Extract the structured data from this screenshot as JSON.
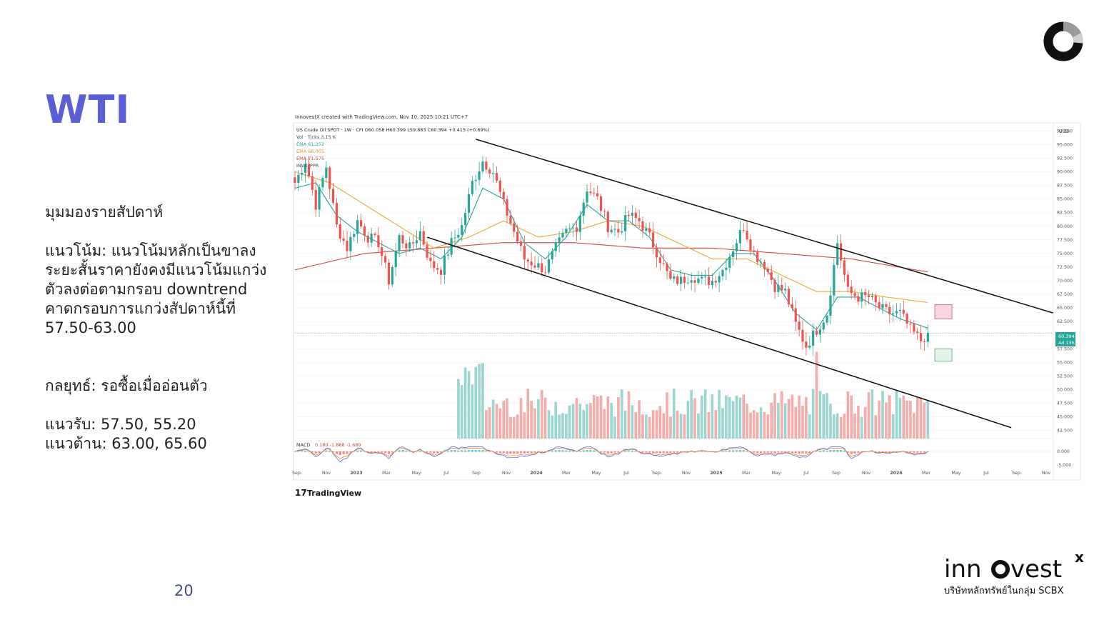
{
  "slide": {
    "title": "WTI",
    "view_heading": "มุมมองรายสัปดาห์",
    "trend_lines": [
      "แนวโน้ม: แนวโน้มหลักเป็นขาลง",
      "ระยะสั้นราคายังคงมีแนวโน้มแกว่ง",
      "ตัวลงต่อตามกรอบ downtrend",
      "คาดกรอบการแกว่งสัปดาห์นี้ที่",
      "57.50-63.00"
    ],
    "strategy": "กลยุทธ์: รอซื้อเมื่ออ่อนตัว",
    "support": "แนวรับ: 57.50, 55.20",
    "resistance": "แนวต้าน: 63.00, 65.60",
    "page_number": "20"
  },
  "brand": {
    "name_part1": "inn",
    "name_part2": "vest",
    "mark": "x",
    "tagline": "บริษัทหลักทรัพย์ในกลุ่ม SCBX"
  },
  "chart_header": {
    "created_by": "InnovestX created with TradingView.com, Nov 10, 2025 10:21 UTC+7",
    "symbol_line": "US Crude Oil SPOT · 1W · CFI  O60.058 H60.399 L59.883 C60.394 +0.415 (+0.69%)",
    "vol_label": "Vol · Ticks  3.15 K",
    "ema1": "EMA  61.252",
    "ema2": "EMA  66.005",
    "ema3": "EMA  71.575",
    "invx": "INVX_PPR",
    "macd_label": "MACD",
    "macd_values": "0.180  -1.868  -1.689",
    "currency": "USD",
    "price_tag": "60.394",
    "countdown": "4d 13h",
    "footer_brand": "TradingView"
  },
  "chart_data": {
    "type": "candlestick",
    "title": "",
    "currency": "USD",
    "y_ticks": [
      97.5,
      95.0,
      92.5,
      90.0,
      87.5,
      85.0,
      82.5,
      80.0,
      77.5,
      75.0,
      72.5,
      70.0,
      67.5,
      65.0,
      62.5,
      57.5,
      55.0,
      52.5,
      50.0,
      47.5,
      45.0,
      42.5
    ],
    "y_tick_labels": [
      "97.500",
      "95.000",
      "92.500",
      "90.000",
      "87.500",
      "85.000",
      "82.500",
      "80.000",
      "77.500",
      "75.000",
      "72.500",
      "70.000",
      "67.500",
      "65.000",
      "62.500",
      "57.500",
      "55.000",
      "52.500",
      "50.000",
      "47.500",
      "45.000",
      "42.500"
    ],
    "ylim": [
      41.0,
      99.0
    ],
    "macd_ticks": [
      "0.000",
      "-5.000"
    ],
    "x_labels": [
      "Sep",
      "Nov",
      "2023",
      "Mar",
      "May",
      "Jul",
      "Sep",
      "Nov",
      "2024",
      "Mar",
      "May",
      "Jul",
      "Sep",
      "Nov",
      "2025",
      "Mar",
      "May",
      "Jul",
      "Sep",
      "Nov",
      "2026",
      "Mar",
      "May",
      "Jul",
      "Sep",
      "Nov"
    ],
    "bold_x_labels": [
      "2023",
      "2024",
      "2025",
      "2026"
    ],
    "last_price": 60.394,
    "price_anchors": [
      [
        0,
        88
      ],
      [
        3,
        92
      ],
      [
        6,
        84
      ],
      [
        9,
        91
      ],
      [
        12,
        80
      ],
      [
        15,
        76
      ],
      [
        18,
        81
      ],
      [
        21,
        78
      ],
      [
        24,
        77
      ],
      [
        27,
        70
      ],
      [
        30,
        78
      ],
      [
        33,
        76
      ],
      [
        36,
        79
      ],
      [
        39,
        73
      ],
      [
        42,
        72
      ],
      [
        45,
        77
      ],
      [
        48,
        80
      ],
      [
        51,
        88
      ],
      [
        54,
        92
      ],
      [
        57,
        90
      ],
      [
        60,
        84
      ],
      [
        63,
        79
      ],
      [
        66,
        74
      ],
      [
        69,
        73
      ],
      [
        72,
        72
      ],
      [
        75,
        76
      ],
      [
        78,
        79
      ],
      [
        81,
        80
      ],
      [
        84,
        87
      ],
      [
        87,
        85
      ],
      [
        90,
        80
      ],
      [
        93,
        79
      ],
      [
        96,
        82
      ],
      [
        99,
        81
      ],
      [
        102,
        78
      ],
      [
        105,
        74
      ],
      [
        108,
        70
      ],
      [
        111,
        70
      ],
      [
        114,
        71
      ],
      [
        117,
        70
      ],
      [
        120,
        70
      ],
      [
        123,
        72
      ],
      [
        126,
        76
      ],
      [
        129,
        80
      ],
      [
        132,
        75
      ],
      [
        135,
        73
      ],
      [
        138,
        69
      ],
      [
        141,
        68
      ],
      [
        144,
        62
      ],
      [
        147,
        58
      ],
      [
        150,
        61
      ],
      [
        153,
        64
      ],
      [
        156,
        77
      ],
      [
        159,
        68
      ],
      [
        162,
        67
      ],
      [
        165,
        67
      ],
      [
        168,
        65
      ],
      [
        171,
        64
      ],
      [
        174,
        64
      ],
      [
        177,
        61
      ],
      [
        180,
        59
      ],
      [
        182,
        60.4
      ]
    ],
    "ema_fast": [
      [
        0,
        87
      ],
      [
        6,
        88
      ],
      [
        12,
        82
      ],
      [
        18,
        79
      ],
      [
        24,
        77
      ],
      [
        30,
        75
      ],
      [
        36,
        76
      ],
      [
        42,
        74
      ],
      [
        48,
        78
      ],
      [
        54,
        87
      ],
      [
        60,
        85
      ],
      [
        66,
        77
      ],
      [
        72,
        74
      ],
      [
        78,
        78
      ],
      [
        84,
        84
      ],
      [
        90,
        81
      ],
      [
        96,
        81
      ],
      [
        102,
        78
      ],
      [
        108,
        72
      ],
      [
        114,
        71
      ],
      [
        120,
        71
      ],
      [
        126,
        75
      ],
      [
        132,
        75
      ],
      [
        138,
        70
      ],
      [
        144,
        64
      ],
      [
        150,
        61
      ],
      [
        156,
        67
      ],
      [
        162,
        67
      ],
      [
        168,
        65
      ],
      [
        174,
        63
      ],
      [
        182,
        61.3
      ]
    ],
    "ema_mid": [
      [
        0,
        90
      ],
      [
        10,
        88
      ],
      [
        20,
        84
      ],
      [
        30,
        80
      ],
      [
        40,
        76
      ],
      [
        50,
        78
      ],
      [
        60,
        81
      ],
      [
        70,
        78
      ],
      [
        80,
        79
      ],
      [
        90,
        81
      ],
      [
        100,
        80
      ],
      [
        110,
        77
      ],
      [
        120,
        74
      ],
      [
        130,
        74
      ],
      [
        140,
        71
      ],
      [
        150,
        68
      ],
      [
        160,
        68
      ],
      [
        170,
        67
      ],
      [
        182,
        66.0
      ]
    ],
    "ema_slow": [
      [
        0,
        72
      ],
      [
        20,
        75
      ],
      [
        40,
        76
      ],
      [
        60,
        77
      ],
      [
        80,
        77
      ],
      [
        100,
        76
      ],
      [
        120,
        76
      ],
      [
        140,
        75
      ],
      [
        160,
        74
      ],
      [
        182,
        71.6
      ]
    ],
    "upper_channel": [
      [
        52,
        96
      ],
      [
        182,
        71
      ]
    ],
    "lower_channel": [
      [
        38,
        78
      ],
      [
        182,
        48
      ]
    ],
    "resistance_box": [
      63.0,
      65.6
    ],
    "support_box": [
      55.2,
      57.5
    ],
    "volume_start_index": 47,
    "macd_range": [
      -6,
      2
    ]
  },
  "colors": {
    "title": "#5b5fd6",
    "bull": "#26a69a",
    "bear": "#ef5350",
    "bull_volume": "#8fd3cb",
    "bear_volume": "#f4a3a1",
    "ema_fast": "#26a69a",
    "ema_mid": "#f0a830",
    "ema_slow": "#d6453d",
    "channel": "#111111",
    "resistance_fill": "#f8d7e3",
    "support_fill": "#e3f5e8",
    "price_tag": "#26a69a"
  }
}
